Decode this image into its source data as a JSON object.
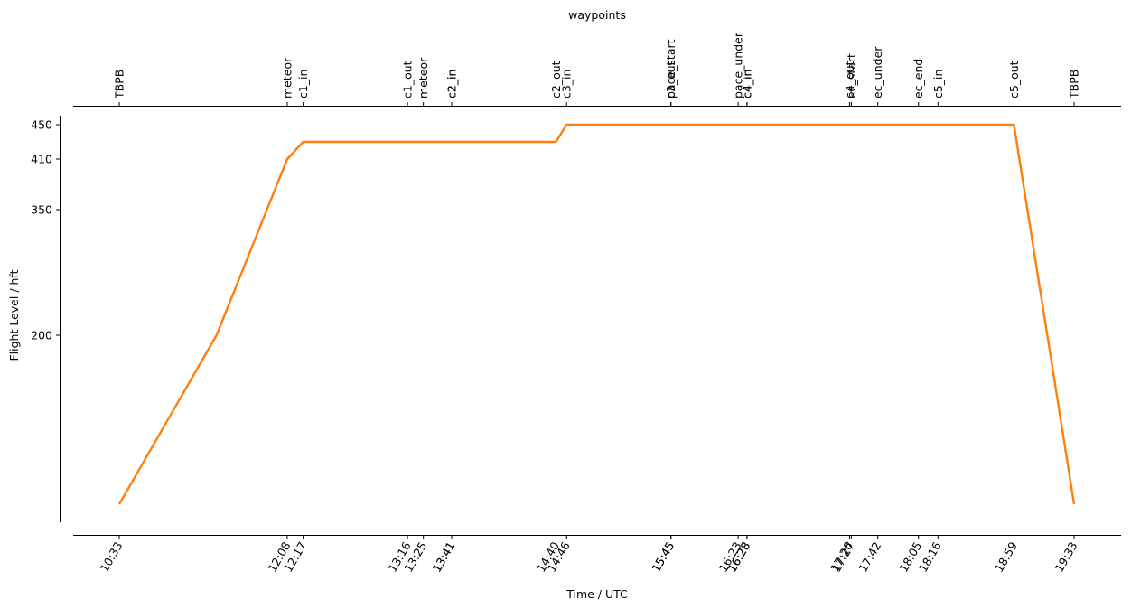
{
  "chart_data": {
    "type": "line",
    "top_axis_title": "waypoints",
    "xlabel": "Time / UTC",
    "ylabel": "Flight Level / hft",
    "series_color": "#ff7f0e",
    "xlim": [
      "10:17",
      "19:49"
    ],
    "yticks": [
      200,
      350,
      410,
      450
    ],
    "y_tick_labels": [
      "200",
      "350",
      "410",
      "450"
    ],
    "x_ticks": [
      {
        "time": "10:33",
        "label": "10:33"
      },
      {
        "time": "12:08",
        "label": "12:08"
      },
      {
        "time": "12:17",
        "label": "12:17"
      },
      {
        "time": "13:16",
        "label": "13:16"
      },
      {
        "time": "13:25",
        "label": "13:25"
      },
      {
        "time": "13:41",
        "label": "13:41"
      },
      {
        "time": "13:41",
        "label": "13:41"
      },
      {
        "time": "14:40",
        "label": "14:40"
      },
      {
        "time": "14:46",
        "label": "14:46"
      },
      {
        "time": "15:45",
        "label": "15:45"
      },
      {
        "time": "15:45",
        "label": "15:45"
      },
      {
        "time": "16:23",
        "label": "16:23"
      },
      {
        "time": "16:28",
        "label": "16:28"
      },
      {
        "time": "16:28",
        "label": "16:28"
      },
      {
        "time": "17:26",
        "label": "17:26"
      },
      {
        "time": "17:27",
        "label": "17:27"
      },
      {
        "time": "17:42",
        "label": "17:42"
      },
      {
        "time": "18:05",
        "label": "18:05"
      },
      {
        "time": "18:16",
        "label": "18:16"
      },
      {
        "time": "18:59",
        "label": "18:59"
      },
      {
        "time": "19:33",
        "label": "19:33"
      }
    ],
    "waypoints": [
      {
        "time": "10:33",
        "label": "TBPB"
      },
      {
        "time": "12:08",
        "label": "meteor"
      },
      {
        "time": "12:17",
        "label": "c1_in"
      },
      {
        "time": "13:16",
        "label": "c1_out"
      },
      {
        "time": "13:25",
        "label": "meteor"
      },
      {
        "time": "13:41",
        "label": "c2_in"
      },
      {
        "time": "13:41",
        "label": "c2_in"
      },
      {
        "time": "14:40",
        "label": "c2_out"
      },
      {
        "time": "14:46",
        "label": "c3_in"
      },
      {
        "time": "15:45",
        "label": "pace_start"
      },
      {
        "time": "15:45",
        "label": "c3_out"
      },
      {
        "time": "16:23",
        "label": "pace_under"
      },
      {
        "time": "16:28",
        "label": "c4_in"
      },
      {
        "time": "16:28",
        "label": "c4_in"
      },
      {
        "time": "17:26",
        "label": "c4_out"
      },
      {
        "time": "17:27",
        "label": "ec_start"
      },
      {
        "time": "17:42",
        "label": "ec_under"
      },
      {
        "time": "18:05",
        "label": "ec_end"
      },
      {
        "time": "18:16",
        "label": "c5_in"
      },
      {
        "time": "18:59",
        "label": "c5_out"
      },
      {
        "time": "19:33",
        "label": "TBPB"
      }
    ],
    "series": [
      {
        "points": [
          {
            "x": "10:33",
            "y": 0
          },
          {
            "x": "11:28",
            "y": 200
          },
          {
            "x": "12:08",
            "y": 410
          },
          {
            "x": "12:17",
            "y": 430
          },
          {
            "x": "14:40",
            "y": 430
          },
          {
            "x": "14:46",
            "y": 450
          },
          {
            "x": "18:59",
            "y": 450
          },
          {
            "x": "19:33",
            "y": 0
          }
        ]
      }
    ]
  }
}
